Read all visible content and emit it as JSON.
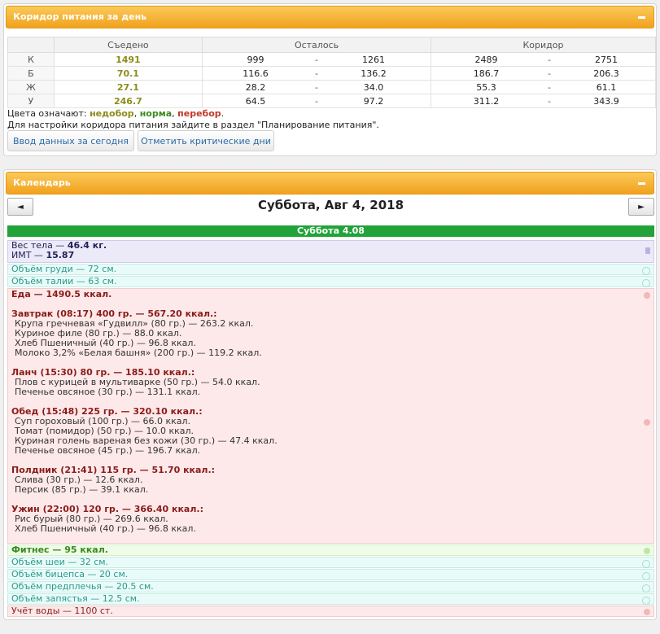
{
  "corridor": {
    "title": "Коридор питания за день",
    "headers": {
      "eaten": "Съедено",
      "left": "Осталось",
      "corridor": "Коридор"
    },
    "rows": [
      {
        "label": "К",
        "eaten": "1491",
        "left_min": "999",
        "left_max": "1261",
        "corr_min": "2489",
        "corr_max": "2751"
      },
      {
        "label": "Б",
        "eaten": "70.1",
        "left_min": "116.6",
        "left_max": "136.2",
        "corr_min": "186.7",
        "corr_max": "206.3"
      },
      {
        "label": "Ж",
        "eaten": "27.1",
        "left_min": "28.2",
        "left_max": "34.0",
        "corr_min": "55.3",
        "corr_max": "61.1"
      },
      {
        "label": "У",
        "eaten": "246.7",
        "left_min": "64.5",
        "left_max": "97.2",
        "corr_min": "311.2",
        "corr_max": "343.9"
      }
    ],
    "dash": "-",
    "legend_prefix": "Цвета означают:",
    "legend_under": "недобор",
    "legend_norm": "норма",
    "legend_over": "перебор",
    "legend_suffix": ".",
    "note": "Для настройки коридора питания зайдите в раздел \"Планирование питания\".",
    "btn_today": "Ввод данных за сегодня",
    "btn_critical": "Отметить критические дни"
  },
  "calendar": {
    "title": "Календарь",
    "prev": "◄",
    "next": "►",
    "date": "Суббота, Авг 4, 2018",
    "day_header": "Суббота 4.08",
    "body_weight_label": "Вес тела — ",
    "body_weight_value": "46.4 кг.",
    "bmi_label": "ИМТ — ",
    "bmi_value": "15.87",
    "chest": "Объём груди — 72 см.",
    "waist": "Объём талии — 63 см.",
    "food_total": "Еда — 1490.5 ккал.",
    "meals": [
      {
        "title": "Завтрак (08:17) 400 гр. — 567.20 ккал.:",
        "items": [
          "Крупа гречневая «Гудвилл» (80 гр.) — 263.2 ккал.",
          "Куриное филе (80 гр.) — 88.0 ккал.",
          "Хлеб Пшеничный (40 гр.) — 96.8 ккал.",
          "Молоко 3,2% «Белая башня» (200 гр.) — 119.2 ккал."
        ]
      },
      {
        "title": "Ланч (15:30) 80 гр. — 185.10 ккал.:",
        "items": [
          "Плов с курицей в мультиварке (50 гр.) — 54.0 ккал.",
          "Печенье овсяное (30 гр.) — 131.1 ккал."
        ]
      },
      {
        "title": "Обед (15:48) 225 гр. — 320.10 ккал.:",
        "items": [
          "Суп гороховый (100 гр.) — 66.0 ккал.",
          "Томат (помидор) (50 гр.) — 10.0 ккал.",
          "Куриная голень вареная без кожи (30 гр.) — 47.4 ккал.",
          "Печенье овсяное (45 гр.) — 196.7 ккал."
        ]
      },
      {
        "title": "Полдник (21:41) 115 гр. — 51.70 ккал.:",
        "items": [
          "Слива (30 гр.) — 12.6 ккал.",
          "Персик (85 гр.) — 39.1 ккал."
        ]
      },
      {
        "title": "Ужин (22:00) 120 гр. — 366.40 ккал.:",
        "items": [
          "Рис бурый (80 гр.) — 269.6 ккал.",
          "Хлеб Пшеничный (40 гр.) — 96.8 ккал."
        ]
      }
    ],
    "fitness": "Фитнес — 95 ккал.",
    "neck": "Объём шеи — 32 см.",
    "biceps": "Объём бицепса — 20 см.",
    "forearm": "Объём предплечья — 20.5 см.",
    "wrist": "Объём запястья — 12.5 см.",
    "water": "Учёт воды — 1100 ст."
  },
  "colors": {
    "header": "#f0a21e",
    "day": "#21a33a",
    "under": "#8c8c1a",
    "norm": "#3b8a1f",
    "over": "#c0392b"
  }
}
